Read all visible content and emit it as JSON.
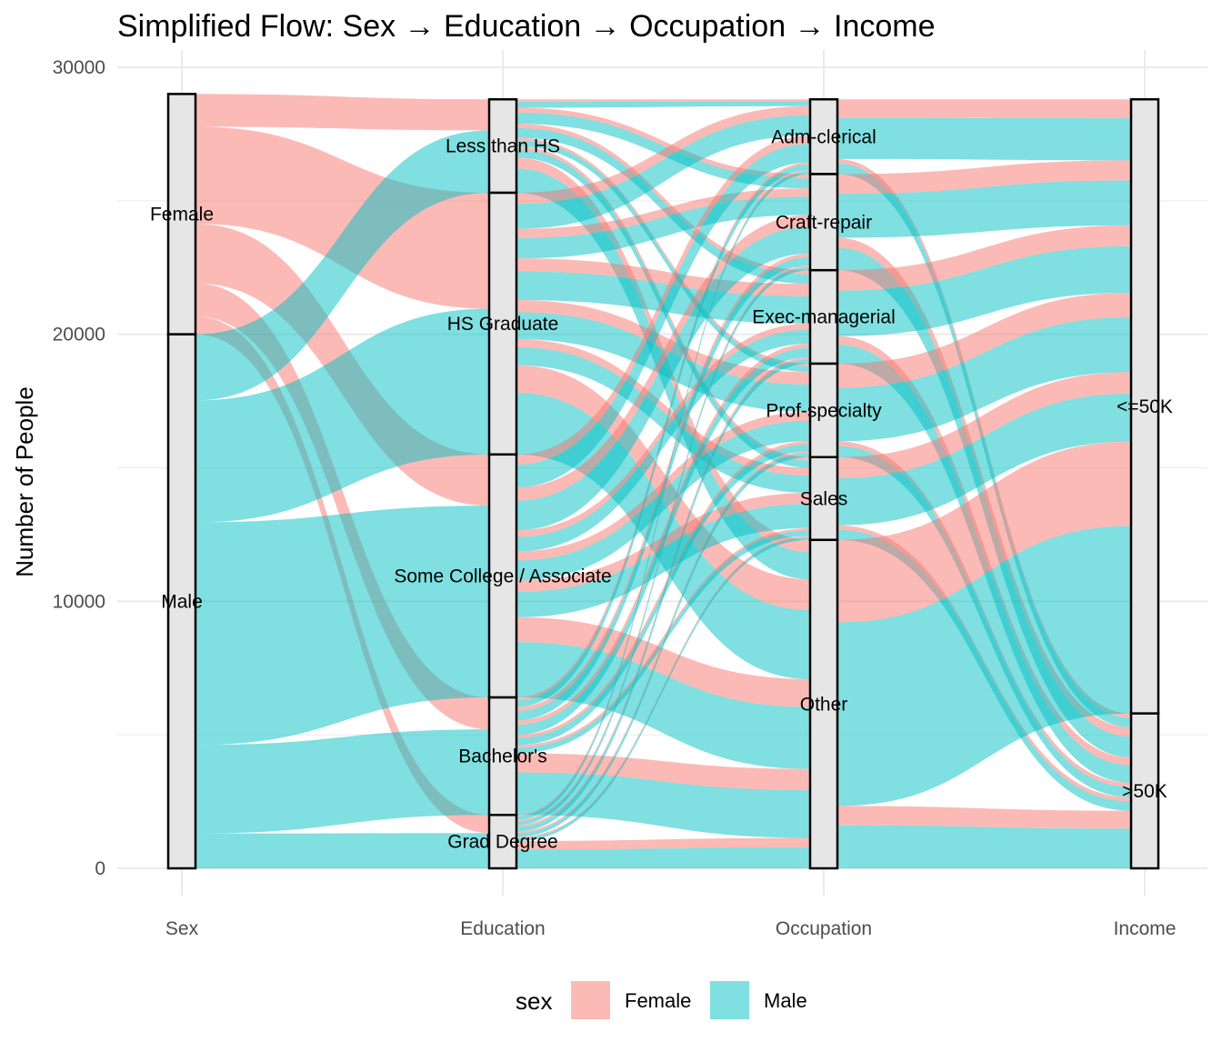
{
  "chart_data": {
    "type": "alluvial",
    "title": "Simplified Flow: Sex → Education → Occupation → Income",
    "xlabel": "",
    "ylabel": "Number of People",
    "ylim": [
      0,
      30000
    ],
    "y_ticks": [
      "0",
      "10000",
      "20000",
      "30000"
    ],
    "axes": [
      "Sex",
      "Education",
      "Occupation",
      "Income"
    ],
    "grid": true,
    "legend": {
      "title": "sex",
      "position": "bottom",
      "items": [
        {
          "label": "Female",
          "color": "#F8766D"
        },
        {
          "label": "Male",
          "color": "#00BFC4"
        }
      ]
    },
    "strata": {
      "Sex": [
        {
          "label": "Female",
          "value": 9000
        },
        {
          "label": "Male",
          "value": 20000
        }
      ],
      "Education": [
        {
          "label": "Less than HS",
          "value": 3500
        },
        {
          "label": "HS Graduate",
          "value": 9800
        },
        {
          "label": "Some College / Associate",
          "value": 9100
        },
        {
          "label": "Bachelor's",
          "value": 4400
        },
        {
          "label": "Grad Degree",
          "value": 2000
        }
      ],
      "Occupation": [
        {
          "label": "Adm-clerical",
          "value": 2800
        },
        {
          "label": "Craft-repair",
          "value": 3600
        },
        {
          "label": "Exec-managerial",
          "value": 3500
        },
        {
          "label": "Prof-specialty",
          "value": 3500
        },
        {
          "label": "Sales",
          "value": 3100
        },
        {
          "label": "Other",
          "value": 12300
        }
      ],
      "Income": [
        {
          "label": "<=50K",
          "value": 23000
        },
        {
          "label": ">50K",
          "value": 5800
        }
      ]
    }
  }
}
